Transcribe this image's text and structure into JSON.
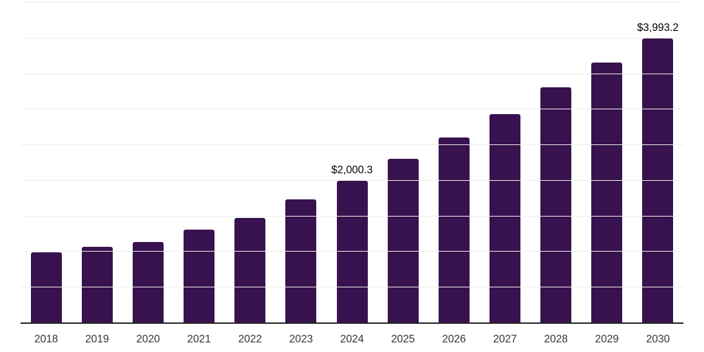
{
  "chart": {
    "background_color": "#ffffff",
    "bar_color": "#38124F",
    "axis_line_color": "#262626",
    "gridline_color": "#ededed",
    "tick_label_color": "#333333",
    "data_label_color": "#000000"
  },
  "chart_data": {
    "type": "bar",
    "title": "",
    "xlabel": "",
    "ylabel": "",
    "categories": [
      "2018",
      "2019",
      "2020",
      "2021",
      "2022",
      "2023",
      "2024",
      "2025",
      "2026",
      "2027",
      "2028",
      "2029",
      "2030"
    ],
    "values": [
      990,
      1070,
      1140,
      1310,
      1480,
      1740,
      2000.3,
      2310,
      2610,
      2940,
      3310,
      3660,
      3993.2
    ],
    "value_labels": {
      "2024": "$2,000.3",
      "2030": "$3,993.2"
    },
    "value_prefix": "$",
    "ylim": [
      0,
      4500
    ],
    "gridline_step": 500,
    "grid": "horizontal",
    "y_tick_labels_visible": false,
    "legend": "none"
  }
}
